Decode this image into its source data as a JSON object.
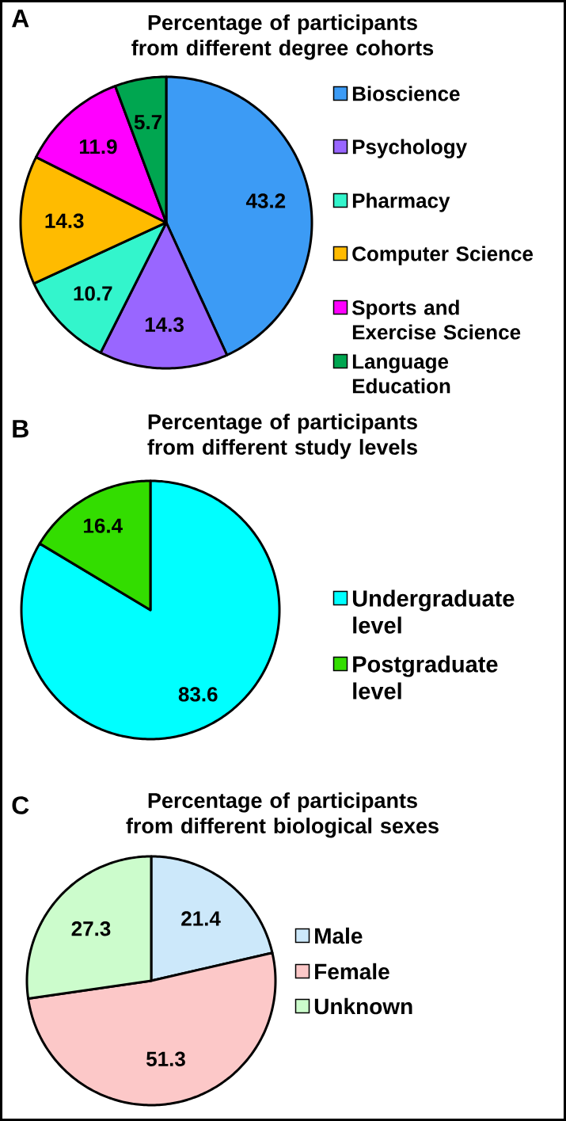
{
  "chart_data": [
    {
      "type": "pie",
      "title": "Percentage of participants from different degree cohorts",
      "annotations": [
        "A"
      ],
      "categories": [
        "Bioscience",
        "Psychology",
        "Pharmacy",
        "Computer Science",
        "Sports and Exercise Science",
        "Language Education"
      ],
      "values": [
        43.2,
        14.3,
        10.7,
        14.3,
        11.9,
        5.7
      ],
      "colors": [
        "#3c9bf5",
        "#9966ff",
        "#33f5cc",
        "#ffbb00",
        "#ff00ff",
        "#00a650"
      ],
      "data_labels": true,
      "legend": "right"
    },
    {
      "type": "pie",
      "title": "Percentage of participants from different study levels",
      "annotations": [
        "B"
      ],
      "categories": [
        "Undergraduate level",
        "Postgraduate level"
      ],
      "values": [
        83.6,
        16.4
      ],
      "colors": [
        "#00ffff",
        "#33dd00"
      ],
      "data_labels": true,
      "legend": "right"
    },
    {
      "type": "pie",
      "title": "Percentage of participants from different biological sexes",
      "annotations": [
        "C"
      ],
      "categories": [
        "Male",
        "Female",
        "Unknown"
      ],
      "values": [
        21.4,
        51.3,
        27.3
      ],
      "colors": [
        "#cce8fa",
        "#fcc8c8",
        "#ccfccc"
      ],
      "data_labels": true,
      "legend": "right"
    }
  ]
}
